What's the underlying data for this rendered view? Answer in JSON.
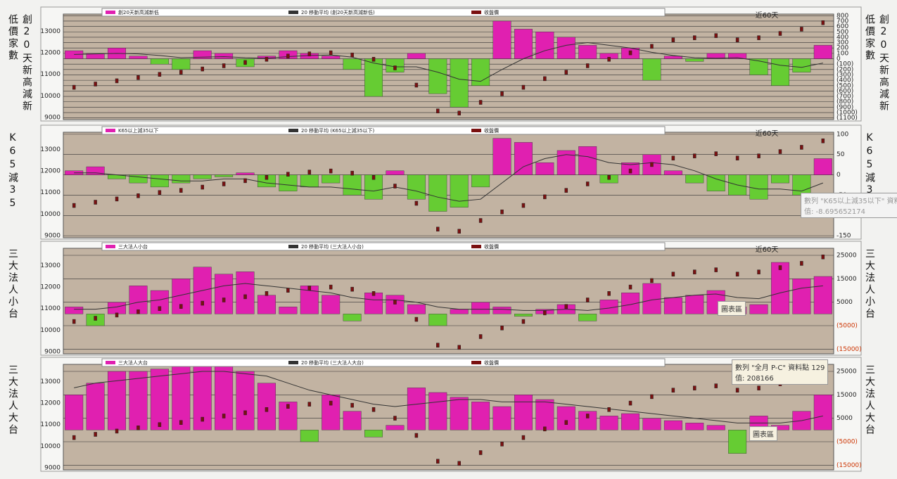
{
  "chart_data": [
    {
      "type": "bar",
      "side_label": "創20天新高減新低價家數",
      "annotation": "近60天",
      "ylim": [
        8900,
        13800
      ],
      "yticks": [
        9000,
        10000,
        11000,
        12000,
        13000
      ],
      "y2lim": [
        -1130,
        830
      ],
      "y2ticks": [
        800,
        700,
        600,
        500,
        400,
        300,
        200,
        100,
        0,
        {
          "value": -100,
          "label": "(100)"
        },
        {
          "value": -200,
          "label": "(200)"
        },
        {
          "value": -300,
          "label": "(300)"
        },
        {
          "value": -400,
          "label": "(400)"
        },
        {
          "value": -500,
          "label": "(500)"
        },
        {
          "value": -600,
          "label": "(600)"
        },
        {
          "value": -700,
          "label": "(700)"
        },
        {
          "value": -800,
          "label": "(800)"
        },
        {
          "value": -900,
          "label": "(900)"
        },
        {
          "value": -1000,
          "label": "(1000)"
        },
        {
          "value": -1100,
          "label": "(1100)"
        }
      ],
      "grid": true,
      "series": [
        {
          "name": "創20天新高減新低",
          "color": "#e020b0",
          "neg_color": "#66cc33",
          "axis": "y2",
          "values": [
            150,
            100,
            200,
            50,
            -100,
            -200,
            150,
            100,
            -150,
            50,
            150,
            100,
            50,
            -200,
            -700,
            -250,
            100,
            -650,
            -900,
            -500,
            700,
            550,
            500,
            400,
            250,
            100,
            200,
            -400,
            50,
            -50,
            100,
            100,
            -300,
            -500,
            -250,
            250
          ]
        },
        {
          "name": "20 移動平均 (創20天新高減新低)",
          "color": "#333333",
          "axis": "y2",
          "values": [
            80,
            90,
            100,
            90,
            60,
            20,
            30,
            40,
            20,
            10,
            40,
            60,
            70,
            30,
            -80,
            -150,
            -150,
            -250,
            -380,
            -420,
            -200,
            0,
            150,
            250,
            300,
            250,
            200,
            120,
            60,
            20,
            10,
            20,
            -40,
            -120,
            -160,
            -80
          ]
        },
        {
          "name": "收盤價",
          "color": "#7a1010",
          "values": [
            10400,
            10550,
            10700,
            10850,
            11000,
            11100,
            11250,
            11400,
            11550,
            11700,
            11850,
            11950,
            12000,
            11900,
            11700,
            11300,
            10500,
            9300,
            9200,
            9700,
            10100,
            10400,
            10800,
            11100,
            11400,
            11700,
            12000,
            12300,
            12600,
            12700,
            12800,
            12600,
            12700,
            12900,
            13100,
            13400
          ]
        }
      ]
    },
    {
      "type": "bar",
      "side_label": "K65減35",
      "annotation": "近60天",
      "tooltip": [
        "數列 \"K65以上減35以下\" 資料",
        "值: -8.695652174"
      ],
      "ylim": [
        8900,
        13800
      ],
      "yticks": [
        9000,
        10000,
        11000,
        12000,
        13000
      ],
      "y2lim": [
        -155,
        105
      ],
      "y2ticks": [
        100,
        50,
        0,
        -50,
        -100,
        -150
      ],
      "grid": true,
      "series": [
        {
          "name": "K65以上減35以下",
          "color": "#e020b0",
          "neg_color": "#66cc33",
          "axis": "y2",
          "values": [
            10,
            20,
            -10,
            -20,
            -30,
            -20,
            -10,
            -5,
            5,
            -30,
            -40,
            -30,
            -20,
            -50,
            -60,
            10,
            -60,
            -90,
            -80,
            -30,
            90,
            80,
            30,
            60,
            70,
            -20,
            30,
            50,
            10,
            -20,
            -40,
            -50,
            -60,
            -20,
            -50,
            40
          ]
        },
        {
          "name": "20 移動平均 (K65以上減35以下)",
          "color": "#333333",
          "axis": "y2",
          "values": [
            5,
            5,
            0,
            -5,
            -10,
            -15,
            -15,
            -10,
            -10,
            -20,
            -25,
            -30,
            -30,
            -35,
            -40,
            -30,
            -40,
            -55,
            -65,
            -60,
            -20,
            20,
            40,
            50,
            45,
            30,
            25,
            30,
            25,
            10,
            -10,
            -25,
            -35,
            -35,
            -40,
            -20
          ]
        },
        {
          "name": "收盤價",
          "color": "#7a1010",
          "values": [
            10400,
            10550,
            10700,
            10850,
            11000,
            11100,
            11250,
            11400,
            11550,
            11700,
            11850,
            11950,
            12000,
            11900,
            11700,
            11300,
            10500,
            9300,
            9200,
            9700,
            10100,
            10400,
            10800,
            11100,
            11400,
            11700,
            12000,
            12300,
            12600,
            12700,
            12800,
            12600,
            12700,
            12900,
            13100,
            13400
          ]
        }
      ]
    },
    {
      "type": "bar",
      "side_label": "三大法人小台",
      "annotation": "近60天",
      "label_box": "圖表區",
      "negative_tick_color": "#cc3300",
      "ylim": [
        8900,
        13800
      ],
      "yticks": [
        9000,
        10000,
        11000,
        12000,
        13000
      ],
      "y2lim": [
        -17000,
        28000
      ],
      "y2ticks": [
        25000,
        15000,
        5000,
        {
          "value": -5000,
          "label": "(5000)"
        },
        {
          "value": -15000,
          "label": "(15000)"
        }
      ],
      "grid": true,
      "series": [
        {
          "name": "三大法人小台",
          "color": "#e020b0",
          "neg_color": "#66cc33",
          "axis": "y2",
          "values": [
            3000,
            -5000,
            5000,
            12000,
            10000,
            15000,
            20000,
            17000,
            18000,
            8000,
            3000,
            12000,
            8000,
            -3000,
            9000,
            8000,
            4000,
            -5000,
            2000,
            5000,
            3000,
            -1000,
            2000,
            4000,
            -3000,
            6000,
            9000,
            13000,
            7000,
            8000,
            10000,
            3000,
            4000,
            22000,
            15000,
            16000
          ]
        },
        {
          "name": "20 移動平均 (三大法人小台)",
          "color": "#333333",
          "axis": "y2",
          "values": [
            2000,
            2000,
            3000,
            5000,
            6000,
            8000,
            10000,
            12000,
            13000,
            12000,
            11000,
            10000,
            9000,
            7000,
            6000,
            6000,
            5000,
            3000,
            2000,
            2000,
            2000,
            1500,
            1500,
            2000,
            1500,
            2500,
            4000,
            6000,
            7000,
            8000,
            8500,
            7000,
            6500,
            9000,
            11000,
            12000
          ]
        },
        {
          "name": "收盤價",
          "color": "#7a1010",
          "values": [
            10400,
            10550,
            10700,
            10850,
            11000,
            11100,
            11250,
            11400,
            11550,
            11700,
            11850,
            11950,
            12000,
            11900,
            11700,
            11300,
            10500,
            9300,
            9200,
            9700,
            10100,
            10400,
            10800,
            11100,
            11400,
            11700,
            12000,
            12300,
            12600,
            12700,
            12800,
            12600,
            12700,
            12900,
            13100,
            13400
          ]
        }
      ]
    },
    {
      "type": "bar",
      "side_label": "三大法人大台",
      "label_box": "圖表區",
      "negative_tick_color": "#cc3300",
      "tooltip": [
        "數列 \"全月 P-C\" 資料點 129",
        "值: 208166"
      ],
      "ylim": [
        8900,
        13800
      ],
      "yticks": [
        9000,
        10000,
        11000,
        12000,
        13000
      ],
      "y2lim": [
        -17000,
        28000
      ],
      "y2ticks": [
        25000,
        15000,
        5000,
        {
          "value": -5000,
          "label": "(5000)"
        },
        {
          "value": -15000,
          "label": "(15000)"
        }
      ],
      "grid": true,
      "series": [
        {
          "name": "三大法人大台",
          "color": "#e020b0",
          "neg_color": "#66cc33",
          "axis": "y2",
          "values": [
            15000,
            20000,
            25000,
            25000,
            26000,
            27000,
            28000,
            27000,
            25000,
            20000,
            12000,
            -5000,
            15000,
            8000,
            -3000,
            2000,
            18000,
            16000,
            14000,
            12000,
            10000,
            15000,
            13000,
            10000,
            8000,
            6000,
            7000,
            5000,
            4000,
            3000,
            2000,
            -10000,
            6000,
            2000,
            8000,
            15000
          ]
        },
        {
          "name": "20 移動平均 (三大法人大台)",
          "color": "#333333",
          "axis": "y2",
          "values": [
            18000,
            20000,
            21000,
            22000,
            23000,
            24000,
            25000,
            25000,
            24000,
            23000,
            20000,
            17000,
            15000,
            13000,
            11000,
            10000,
            11000,
            12000,
            13000,
            13000,
            12000,
            12000,
            12000,
            11000,
            10000,
            9000,
            8000,
            7000,
            6000,
            5000,
            4000,
            3000,
            3000,
            3000,
            4000,
            6000
          ]
        },
        {
          "name": "收盤價",
          "color": "#7a1010",
          "values": [
            10400,
            10550,
            10700,
            10850,
            11000,
            11100,
            11250,
            11400,
            11550,
            11700,
            11850,
            11950,
            12000,
            11900,
            11700,
            11300,
            10500,
            9300,
            9200,
            9700,
            10100,
            10400,
            10800,
            11100,
            11400,
            11700,
            12000,
            12300,
            12600,
            12700,
            12800,
            12600,
            12700,
            12900,
            13100,
            13400
          ]
        }
      ]
    }
  ]
}
